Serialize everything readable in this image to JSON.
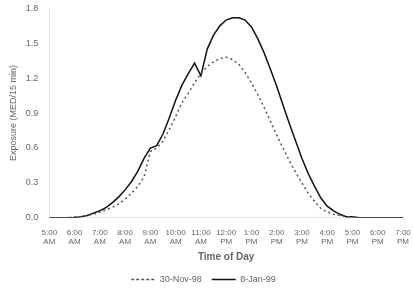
{
  "chart_data": {
    "type": "line",
    "xlabel": "Time of Day",
    "ylabel": "Exposure (MED/15 min)",
    "xlim": [
      5,
      19
    ],
    "xticks": [
      {
        "value": 5,
        "label": "5:00\nAM"
      },
      {
        "value": 6,
        "label": "6:00\nAM"
      },
      {
        "value": 7,
        "label": "7:00\nAM"
      },
      {
        "value": 8,
        "label": "8:00\nAM"
      },
      {
        "value": 9,
        "label": "9:00\nAM"
      },
      {
        "value": 10,
        "label": "10:00\nAM"
      },
      {
        "value": 11,
        "label": "11:00\nAM"
      },
      {
        "value": 12,
        "label": "12:00\nPM"
      },
      {
        "value": 13,
        "label": "1:00\nPM"
      },
      {
        "value": 14,
        "label": "2:00\nPM"
      },
      {
        "value": 15,
        "label": "3:00\nPM"
      },
      {
        "value": 16,
        "label": "4:00\nPM"
      },
      {
        "value": 17,
        "label": "5:00\nPM"
      },
      {
        "value": 18,
        "label": "6:00\nPM"
      },
      {
        "value": 19,
        "label": "7:00\nPM"
      }
    ],
    "ylim": [
      0,
      1.8
    ],
    "yticks": [
      {
        "value": 0,
        "label": "0.0"
      },
      0.3,
      0.6,
      0.9,
      1.2,
      1.5,
      1.8
    ],
    "grid": false,
    "legend": "bottom",
    "x": [
      5.0,
      5.25,
      5.5,
      5.75,
      6.0,
      6.25,
      6.5,
      6.75,
      7.0,
      7.25,
      7.5,
      7.75,
      8.0,
      8.25,
      8.5,
      8.75,
      9.0,
      9.25,
      9.5,
      9.75,
      10.0,
      10.25,
      10.5,
      10.75,
      11.0,
      11.25,
      11.5,
      11.75,
      12.0,
      12.25,
      12.5,
      12.75,
      13.0,
      13.25,
      13.5,
      13.75,
      14.0,
      14.25,
      14.5,
      14.75,
      15.0,
      15.25,
      15.5,
      15.75,
      16.0,
      16.25,
      16.5,
      16.75,
      17.0,
      17.25,
      17.5,
      17.75,
      18.0,
      18.25,
      18.5,
      18.75,
      19.0
    ],
    "series": [
      {
        "name": "30-Nov-98",
        "color": "#555555",
        "line_style": "dotted",
        "values": [
          0.0,
          0.0,
          0.0,
          0.0,
          0.01,
          0.01,
          0.02,
          0.03,
          0.05,
          0.07,
          0.09,
          0.12,
          0.16,
          0.21,
          0.27,
          0.35,
          0.57,
          0.6,
          0.66,
          0.76,
          0.87,
          0.99,
          1.07,
          1.16,
          1.24,
          1.3,
          1.34,
          1.37,
          1.38,
          1.36,
          1.32,
          1.25,
          1.16,
          1.06,
          0.95,
          0.83,
          0.71,
          0.6,
          0.49,
          0.39,
          0.3,
          0.21,
          0.14,
          0.08,
          0.05,
          0.03,
          0.02,
          0.01,
          0.01,
          0.0,
          0.0,
          0.0,
          0.0,
          0.0,
          0.0,
          0.0,
          0.0
        ]
      },
      {
        "name": "8-Jan-99",
        "color": "#111111",
        "line_style": "solid",
        "values": [
          0.0,
          0.0,
          0.0,
          0.0,
          0.0,
          0.01,
          0.02,
          0.04,
          0.06,
          0.09,
          0.13,
          0.18,
          0.24,
          0.31,
          0.4,
          0.51,
          0.6,
          0.62,
          0.72,
          0.86,
          1.01,
          1.14,
          1.24,
          1.33,
          1.22,
          1.45,
          1.57,
          1.65,
          1.7,
          1.72,
          1.72,
          1.7,
          1.64,
          1.54,
          1.42,
          1.28,
          1.13,
          0.97,
          0.81,
          0.66,
          0.51,
          0.38,
          0.27,
          0.17,
          0.1,
          0.06,
          0.03,
          0.01,
          0.01,
          0.0,
          0.0,
          0.0,
          0.0,
          0.0,
          0.0,
          0.0,
          0.0
        ]
      }
    ]
  }
}
